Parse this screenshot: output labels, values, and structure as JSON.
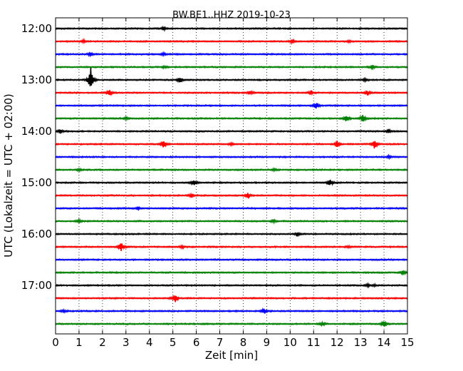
{
  "chart_data": {
    "type": "line",
    "title": "BW.BE1..HHZ 2019-10-23",
    "xlabel": "Zeit  [min]",
    "ylabel": "UTC (Lokalzeit = UTC + 02:00)",
    "xlim": [
      0,
      15
    ],
    "x_ticks": [
      "0",
      "1",
      "2",
      "3",
      "4",
      "5",
      "6",
      "7",
      "8",
      "9",
      "10",
      "11",
      "12",
      "13",
      "14",
      "15"
    ],
    "y_tick_labels": [
      "12:00",
      "13:00",
      "14:00",
      "15:00",
      "16:00",
      "17:00"
    ],
    "y_tick_trace_index": [
      0,
      4,
      8,
      12,
      16,
      20
    ],
    "grid": "vertical dotted at each minute",
    "colors": [
      "#000000",
      "#ff0000",
      "#0000ff",
      "#008000"
    ],
    "traces": [
      {
        "start": "12:00",
        "events": [
          [
            4.6,
            0.25
          ]
        ]
      },
      {
        "start": "12:15",
        "events": [
          [
            1.2,
            0.2
          ],
          [
            10.1,
            0.3
          ],
          [
            12.5,
            0.15
          ]
        ]
      },
      {
        "start": "12:30",
        "events": [
          [
            1.5,
            0.25
          ],
          [
            4.6,
            0.2
          ]
        ]
      },
      {
        "start": "12:45",
        "events": [
          [
            4.6,
            0.15
          ],
          [
            13.5,
            0.25
          ]
        ]
      },
      {
        "start": "13:00",
        "events": [
          [
            1.5,
            2.2
          ],
          [
            5.3,
            0.45
          ],
          [
            13.2,
            0.25
          ]
        ]
      },
      {
        "start": "13:15",
        "events": [
          [
            2.3,
            0.6
          ],
          [
            8.3,
            0.3
          ],
          [
            10.9,
            0.3
          ],
          [
            13.3,
            0.35
          ]
        ]
      },
      {
        "start": "13:30",
        "events": [
          [
            11.1,
            0.55
          ]
        ]
      },
      {
        "start": "13:45",
        "events": [
          [
            12.4,
            0.55
          ],
          [
            13.1,
            0.7
          ],
          [
            3.0,
            0.2
          ]
        ]
      },
      {
        "start": "14:00",
        "events": [
          [
            0.2,
            0.3
          ],
          [
            14.2,
            0.3
          ]
        ]
      },
      {
        "start": "14:15",
        "events": [
          [
            4.6,
            0.6
          ],
          [
            12.0,
            0.5
          ],
          [
            13.6,
            0.75
          ],
          [
            7.5,
            0.2
          ]
        ]
      },
      {
        "start": "14:30",
        "events": [
          [
            14.2,
            0.2
          ]
        ]
      },
      {
        "start": "14:45",
        "events": [
          [
            1.0,
            0.2
          ],
          [
            9.3,
            0.2
          ]
        ]
      },
      {
        "start": "15:00",
        "events": [
          [
            5.9,
            0.55
          ],
          [
            11.7,
            0.6
          ]
        ]
      },
      {
        "start": "15:15",
        "events": [
          [
            5.8,
            0.25
          ],
          [
            8.2,
            0.55
          ]
        ]
      },
      {
        "start": "15:30",
        "events": [
          [
            3.5,
            0.2
          ]
        ]
      },
      {
        "start": "15:45",
        "events": [
          [
            1.0,
            0.25
          ],
          [
            9.3,
            0.25
          ]
        ]
      },
      {
        "start": "16:00",
        "events": [
          [
            10.3,
            0.3
          ]
        ]
      },
      {
        "start": "16:15",
        "events": [
          [
            2.8,
            0.7
          ],
          [
            5.4,
            0.2
          ],
          [
            12.5,
            0.15
          ]
        ]
      },
      {
        "start": "16:30",
        "events": []
      },
      {
        "start": "16:45",
        "events": [
          [
            14.8,
            0.35
          ]
        ]
      },
      {
        "start": "17:00",
        "events": [
          [
            13.3,
            0.2
          ],
          [
            13.6,
            0.15
          ]
        ]
      },
      {
        "start": "17:15",
        "events": [
          [
            5.1,
            0.6
          ]
        ]
      },
      {
        "start": "17:30",
        "events": [
          [
            0.35,
            0.2
          ],
          [
            8.9,
            0.4
          ]
        ]
      },
      {
        "start": "17:45",
        "events": [
          [
            11.4,
            0.35
          ],
          [
            14.0,
            0.55
          ]
        ]
      }
    ]
  }
}
